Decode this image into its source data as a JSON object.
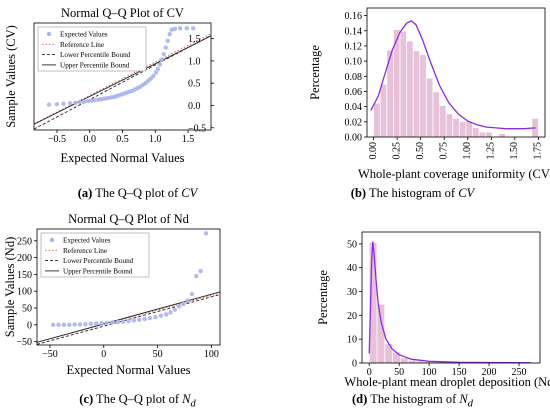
{
  "chart_data": [
    {
      "type": "scatter",
      "panel": "a",
      "title": "Normal Q–Q Plot of CV",
      "xlabel": "Expected Normal Values",
      "ylabel": "Sample Values (CV)",
      "xlim": [
        -0.85,
        1.85
      ],
      "ylim": [
        -0.55,
        1.85
      ],
      "xticks": [
        -0.5,
        0.0,
        0.5,
        1.0,
        1.5
      ],
      "xtick_labels": [
        "−0.5",
        "0.0",
        "0.5",
        "1.0",
        "1.5"
      ],
      "yticks": [
        -0.5,
        0.0,
        0.5,
        1.0,
        1.5
      ],
      "ytick_labels": [
        "−0.5",
        "0.0",
        "0.5",
        "1.0",
        "1.5"
      ],
      "yaxis_side": "right",
      "grid": false,
      "legend": {
        "placement": "top-left",
        "entries": [
          "Expected Values",
          "Reference Line",
          "Lower Percentile Bound",
          "Upper Percentile Bound"
        ]
      },
      "points": [
        [
          -0.62,
          0.02
        ],
        [
          -0.5,
          0.03
        ],
        [
          -0.4,
          0.04
        ],
        [
          -0.3,
          0.05
        ],
        [
          -0.22,
          0.06
        ],
        [
          -0.15,
          0.08
        ],
        [
          -0.08,
          0.09
        ],
        [
          -0.02,
          0.1
        ],
        [
          0.03,
          0.11
        ],
        [
          0.08,
          0.12
        ],
        [
          0.13,
          0.13
        ],
        [
          0.17,
          0.14
        ],
        [
          0.21,
          0.15
        ],
        [
          0.25,
          0.16
        ],
        [
          0.29,
          0.17
        ],
        [
          0.33,
          0.18
        ],
        [
          0.37,
          0.19
        ],
        [
          0.41,
          0.21
        ],
        [
          0.45,
          0.23
        ],
        [
          0.49,
          0.25
        ],
        [
          0.53,
          0.27
        ],
        [
          0.57,
          0.29
        ],
        [
          0.61,
          0.31
        ],
        [
          0.65,
          0.33
        ],
        [
          0.69,
          0.36
        ],
        [
          0.73,
          0.39
        ],
        [
          0.77,
          0.42
        ],
        [
          0.81,
          0.46
        ],
        [
          0.85,
          0.5
        ],
        [
          0.89,
          0.55
        ],
        [
          0.93,
          0.6
        ],
        [
          0.97,
          0.66
        ],
        [
          1.01,
          0.74
        ],
        [
          1.04,
          0.82
        ],
        [
          1.07,
          0.92
        ],
        [
          1.1,
          1.03
        ],
        [
          1.13,
          1.15
        ],
        [
          1.16,
          1.3
        ],
        [
          1.19,
          1.45
        ],
        [
          1.22,
          1.6
        ],
        [
          1.25,
          1.7
        ],
        [
          1.3,
          1.72
        ],
        [
          1.38,
          1.73
        ],
        [
          1.48,
          1.73
        ],
        [
          1.58,
          1.73
        ]
      ],
      "lines": [
        {
          "name": "Reference Line",
          "from": [
            -0.85,
            -0.41
          ],
          "to": [
            1.85,
            1.61
          ],
          "color": "#d9534f",
          "style": "dotted"
        },
        {
          "name": "Lower Percentile Bound",
          "from": [
            -0.85,
            -0.53
          ],
          "to": [
            1.85,
            1.57
          ],
          "color": "#222222",
          "style": "dashed"
        },
        {
          "name": "Upper Percentile Bound",
          "from": [
            -0.85,
            -0.42
          ],
          "to": [
            1.85,
            1.56
          ],
          "color": "#222222",
          "style": "solid"
        }
      ],
      "colors": {
        "points": "#a9b4ef",
        "reference": "#d9534f",
        "bounds": "#222222"
      }
    },
    {
      "type": "bar",
      "panel": "b",
      "title": "",
      "xlabel": "Whole-plant coverage uniformity (CV)",
      "ylabel": "Percentage",
      "xlim": [
        -0.07,
        1.82
      ],
      "ylim": [
        0,
        0.17
      ],
      "xticks": [
        0.0,
        0.25,
        0.5,
        0.75,
        1.0,
        1.25,
        1.5,
        1.75
      ],
      "xtick_labels": [
        "0.00",
        "0.25",
        "0.50",
        "0.75",
        "1.00",
        "1.25",
        "1.50",
        "1.75"
      ],
      "yticks": [
        0.0,
        0.02,
        0.04,
        0.06,
        0.08,
        0.1,
        0.12,
        0.14,
        0.16
      ],
      "ytick_labels": [
        "0.00",
        "0.02",
        "0.04",
        "0.06",
        "0.08",
        "0.10",
        "0.12",
        "0.14",
        "0.16"
      ],
      "grid": false,
      "bin_starts": [
        0.0,
        0.07,
        0.14,
        0.21,
        0.28,
        0.35,
        0.42,
        0.49,
        0.56,
        0.63,
        0.7,
        0.77,
        0.84,
        0.91,
        0.98,
        1.05,
        1.12,
        1.19,
        1.26,
        1.33,
        1.4,
        1.47,
        1.54,
        1.61,
        1.68
      ],
      "bin_width": 0.07,
      "values": [
        0.044,
        0.069,
        0.114,
        0.141,
        0.139,
        0.126,
        0.113,
        0.108,
        0.077,
        0.059,
        0.041,
        0.03,
        0.024,
        0.02,
        0.02,
        0.012,
        0.006,
        0.006,
        0.0,
        0.004,
        0.0,
        0.0,
        0.0,
        0.0,
        0.024
      ],
      "curve": [
        [
          -0.03,
          0.035
        ],
        [
          0.05,
          0.054
        ],
        [
          0.12,
          0.083
        ],
        [
          0.2,
          0.115
        ],
        [
          0.28,
          0.138
        ],
        [
          0.35,
          0.15
        ],
        [
          0.4,
          0.153
        ],
        [
          0.45,
          0.148
        ],
        [
          0.52,
          0.128
        ],
        [
          0.6,
          0.1
        ],
        [
          0.7,
          0.068
        ],
        [
          0.8,
          0.045
        ],
        [
          0.9,
          0.03
        ],
        [
          1.0,
          0.021
        ],
        [
          1.1,
          0.016
        ],
        [
          1.2,
          0.013
        ],
        [
          1.3,
          0.012
        ],
        [
          1.4,
          0.011
        ],
        [
          1.5,
          0.011
        ],
        [
          1.6,
          0.011
        ],
        [
          1.72,
          0.012
        ]
      ],
      "colors": {
        "bars": "#e8c1d9",
        "curve": "#8a2be2"
      }
    },
    {
      "type": "scatter",
      "panel": "c",
      "title": "Normal Q–Q Plot of Nd",
      "xlabel": "Expected Normal Values",
      "ylabel": "Sample Values (Nd)",
      "xlim": [
        -62,
        108
      ],
      "ylim": [
        -60,
        285
      ],
      "xticks": [
        -50,
        0,
        50,
        100
      ],
      "xtick_labels": [
        "−50",
        "0",
        "50",
        "100"
      ],
      "yticks": [
        -50,
        0,
        50,
        100,
        150,
        200,
        250
      ],
      "ytick_labels": [
        "−50",
        "0",
        "50",
        "100",
        "150",
        "200",
        "250"
      ],
      "grid": false,
      "legend": {
        "placement": "top-left",
        "entries": [
          "Expected Values",
          "Reference Line",
          "Lower Percentile Bound",
          "Upper Percentile Bound"
        ]
      },
      "points": [
        [
          -47,
          0
        ],
        [
          -42,
          0
        ],
        [
          -37,
          0
        ],
        [
          -32,
          0
        ],
        [
          -27,
          1
        ],
        [
          -22,
          1
        ],
        [
          -17,
          2
        ],
        [
          -12,
          3
        ],
        [
          -7,
          4
        ],
        [
          -2,
          5
        ],
        [
          3,
          6
        ],
        [
          8,
          7
        ],
        [
          13,
          8
        ],
        [
          18,
          9
        ],
        [
          23,
          11
        ],
        [
          28,
          13
        ],
        [
          33,
          15
        ],
        [
          38,
          17
        ],
        [
          43,
          20
        ],
        [
          48,
          23
        ],
        [
          53,
          27
        ],
        [
          58,
          31
        ],
        [
          62,
          37
        ],
        [
          66,
          45
        ],
        [
          70,
          55
        ],
        [
          74,
          62
        ],
        [
          78,
          72
        ],
        [
          82,
          92
        ],
        [
          86,
          145
        ],
        [
          90,
          160
        ],
        [
          95,
          272
        ]
      ],
      "lines": [
        {
          "name": "Reference Line",
          "from": [
            -62,
            -52
          ],
          "to": [
            108,
            94
          ],
          "color": "#d9534f",
          "style": "dotted"
        },
        {
          "name": "Lower Percentile Bound",
          "from": [
            -62,
            -58
          ],
          "to": [
            108,
            90
          ],
          "color": "#222222",
          "style": "dashed"
        },
        {
          "name": "Upper Percentile Bound",
          "from": [
            -62,
            -52
          ],
          "to": [
            108,
            98
          ],
          "color": "#222222",
          "style": "solid"
        }
      ],
      "colors": {
        "points": "#a9b4ef",
        "reference": "#d9534f",
        "bounds": "#222222"
      }
    },
    {
      "type": "bar",
      "panel": "d",
      "title": "",
      "xlabel": "Whole-plant mean droplet deposition (Nd)",
      "ylabel": "Percentage",
      "xlim": [
        -12,
        285
      ],
      "ylim": [
        0,
        55
      ],
      "xticks": [
        0,
        50,
        100,
        150,
        200,
        250
      ],
      "xtick_labels": [
        "0",
        "50",
        "100",
        "150",
        "200",
        "250"
      ],
      "yticks": [
        0,
        10,
        20,
        30,
        40,
        50
      ],
      "ytick_labels": [
        "0",
        "10",
        "20",
        "30",
        "40",
        "50"
      ],
      "grid": false,
      "bin_starts": [
        0,
        13,
        26,
        39,
        52,
        65,
        78,
        91,
        104,
        117,
        130,
        143,
        156,
        169,
        182,
        195,
        208,
        221,
        234,
        247,
        260
      ],
      "bin_width": 13,
      "values": [
        50.5,
        24.5,
        8.0,
        4.5,
        2.0,
        1.0,
        0.6,
        0.4,
        0.3,
        0.2,
        0.2,
        0.1,
        0.1,
        0.0,
        0.1,
        0.0,
        0.0,
        0.0,
        0.0,
        0.0,
        0.3
      ],
      "curve": [
        [
          0,
          4
        ],
        [
          2,
          22
        ],
        [
          4,
          42
        ],
        [
          6,
          51
        ],
        [
          8,
          46
        ],
        [
          11,
          36
        ],
        [
          15,
          25
        ],
        [
          20,
          17
        ],
        [
          28,
          10
        ],
        [
          38,
          6
        ],
        [
          50,
          3.5
        ],
        [
          70,
          1.6
        ],
        [
          100,
          0.7
        ],
        [
          150,
          0.3
        ],
        [
          200,
          0.2
        ],
        [
          270,
          0.1
        ]
      ],
      "colors": {
        "bars": "#e8c1d9",
        "curve": "#8a2be2"
      }
    }
  ],
  "captions": [
    {
      "label": "(a)",
      "text": " The Q–Q plot of ",
      "var": "CV",
      "sub": ""
    },
    {
      "label": "(b)",
      "text": " The histogram of ",
      "var": "CV",
      "sub": ""
    },
    {
      "label": "(c)",
      "text": " The Q–Q plot of ",
      "var": "N",
      "sub": "d"
    },
    {
      "label": "(d)",
      "text": " The histogram of ",
      "var": "N",
      "sub": "d"
    }
  ]
}
